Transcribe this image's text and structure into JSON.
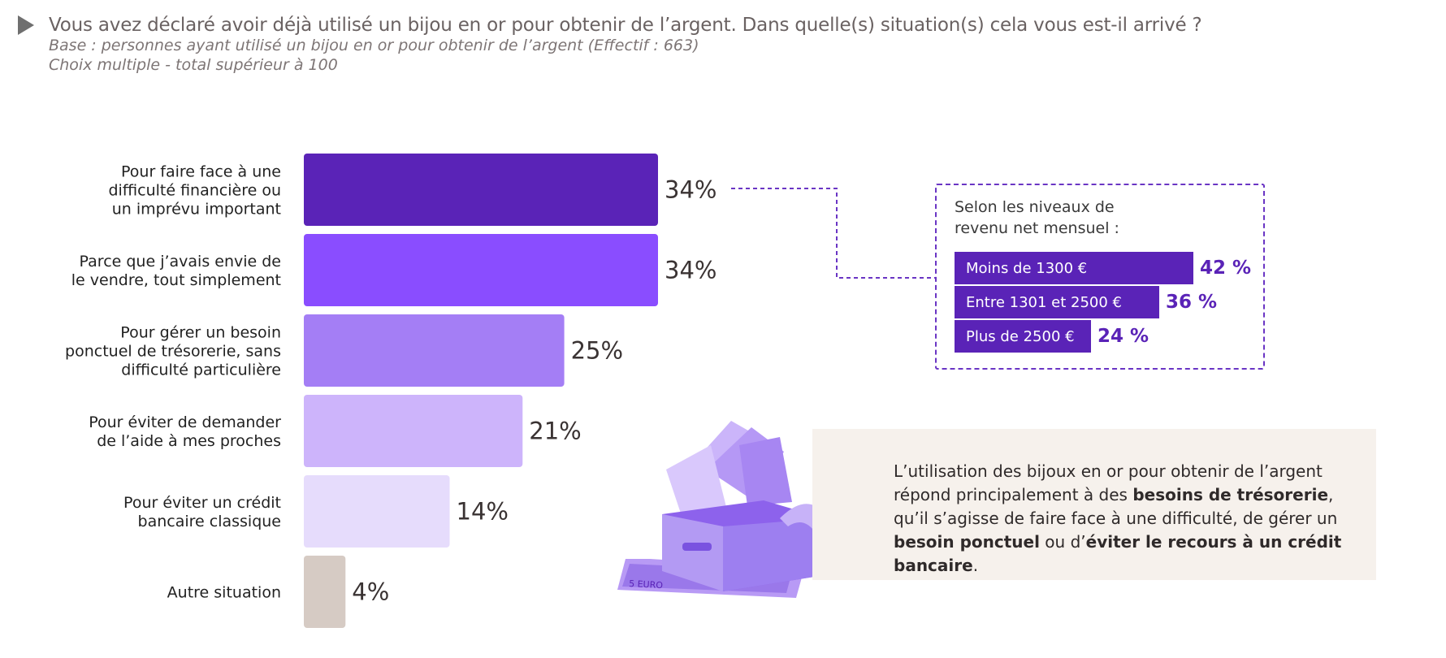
{
  "header": {
    "title": "Vous avez déclaré avoir déjà utilisé un bijou en or pour obtenir de l’argent. Dans quelle(s) situation(s) cela vous est-il arrivé ?",
    "base": "Base : personnes ayant utilisé un bijou en or pour obtenir de l’argent (Effectif : 663)",
    "choice": "Choix multiple - total supérieur à 100"
  },
  "colors": {
    "bars": [
      "#5a23b7",
      "#8a4dff",
      "#a47ef5",
      "#cdb4fb",
      "#e6dcfc",
      "#d6cbc4"
    ],
    "accent": "#5a23b7",
    "note_bg": "#f6f1ec"
  },
  "chart_data": {
    "type": "bar",
    "orientation": "horizontal",
    "title": "Vous avez déclaré avoir déjà utilisé un bijou en or pour obtenir de l’argent. Dans quelle(s) situation(s) cela vous est-il arrivé ?",
    "categories": [
      [
        "Pour faire face à une",
        "difficulté financière ou",
        "un imprévu important"
      ],
      [
        "Parce que j’avais envie de",
        "le vendre, tout simplement"
      ],
      [
        "Pour gérer un besoin",
        "ponctuel de trésorerie, sans",
        "difficulté particulière"
      ],
      [
        "Pour éviter de demander",
        "de l’aide à mes proches"
      ],
      [
        "Pour éviter un crédit",
        "bancaire classique"
      ],
      [
        "Autre situation"
      ]
    ],
    "values": [
      34,
      34,
      25,
      21,
      14,
      4
    ],
    "value_labels": [
      "34%",
      "34%",
      "25%",
      "21%",
      "14%",
      "4%"
    ],
    "unit": "%",
    "xlim": [
      0,
      34
    ]
  },
  "income_box": {
    "title": "Selon les niveaux de revenu net mensuel :",
    "rows": [
      {
        "label": "Moins de 1300 €",
        "value": 42,
        "value_label": "42 %"
      },
      {
        "label": "Entre 1301 et 2500 €",
        "value": 36,
        "value_label": "36 %"
      },
      {
        "label": "Plus de 2500 €",
        "value": 24,
        "value_label": "24 %"
      }
    ]
  },
  "note": {
    "part1": "L’utilisation des bijoux en or pour obtenir de l’argent répond principalement à des ",
    "bold1": "besoins de trésorerie",
    "part2": ", qu’il s’agisse de faire face à une difficulté, de gérer un ",
    "bold2": "besoin ponctuel",
    "part3": " ou d’",
    "bold3": "éviter le recours à un crédit bancaire",
    "part4": "."
  },
  "illustration": {
    "icon": "money-box-icon",
    "banknote_text": "5 EURO"
  }
}
